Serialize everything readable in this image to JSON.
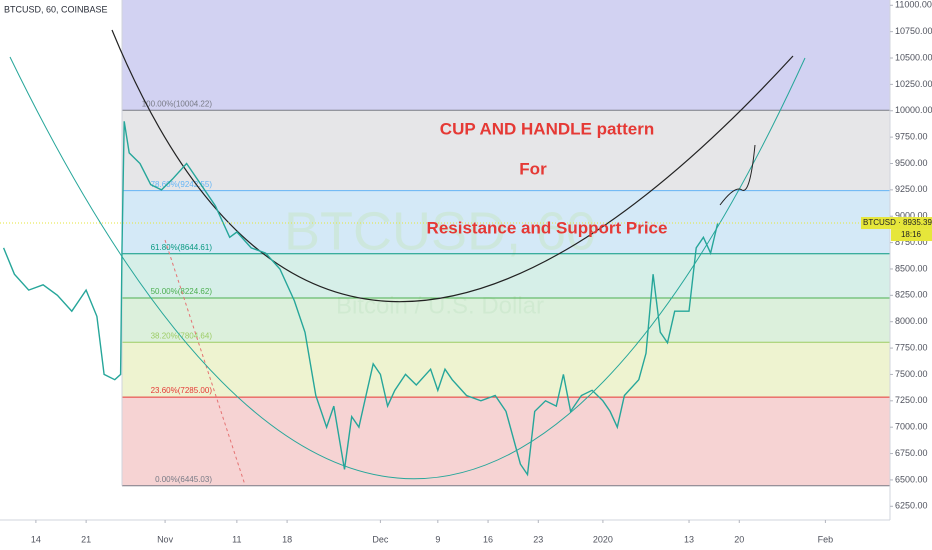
{
  "chart_data": {
    "type": "line",
    "title": "BTCUSD, 60, COINBASE",
    "watermark": "BTCUSD, 60",
    "watermark_subtitle": "Bitcoin / U.S. Dollar",
    "annotations": [
      "CUP AND HANDLE pattern",
      "For",
      "Resistance and Support Price"
    ],
    "color": "#26a69a",
    "x": [
      -4.5,
      -3,
      -1,
      1,
      3,
      5,
      7,
      8.5,
      9.5,
      11,
      11.8,
      12,
      12.3,
      13,
      14.5,
      16,
      17.5,
      19,
      21,
      23,
      25,
      27,
      28,
      30,
      32,
      34,
      36,
      37.5,
      39,
      40.5,
      41.5,
      42.5,
      43,
      44,
      45,
      46,
      47,
      48,
      49,
      50,
      51.5,
      53,
      55,
      56,
      57,
      58,
      60,
      62,
      64,
      65.5,
      66.5,
      67.5,
      68.5,
      69.5,
      71,
      72.5,
      73.5,
      74.5,
      76,
      77.5,
      79,
      80,
      81,
      82,
      84,
      85,
      86,
      87,
      88,
      89,
      91,
      92,
      93,
      94,
      95
    ],
    "values": [
      8700,
      8450,
      8300,
      8350,
      8250,
      8100,
      8300,
      8050,
      7500,
      7450,
      7500,
      8700,
      9900,
      9600,
      9500,
      9300,
      9250,
      9350,
      9500,
      9300,
      9100,
      8800,
      8850,
      8700,
      8650,
      8500,
      8200,
      7900,
      7300,
      7000,
      7200,
      6800,
      6600,
      7100,
      7000,
      7300,
      7600,
      7500,
      7200,
      7350,
      7500,
      7400,
      7550,
      7350,
      7550,
      7450,
      7300,
      7250,
      7300,
      7150,
      6900,
      6650,
      6550,
      7150,
      7250,
      7200,
      7500,
      7150,
      7300,
      7350,
      7250,
      7150,
      7000,
      7300,
      7450,
      7700,
      8450,
      7900,
      7800,
      8100,
      8100,
      8700,
      8800,
      8650,
      8935
    ],
    "xlim": [
      -5,
      119
    ],
    "xticks": [
      {
        "value": 0,
        "label": "14"
      },
      {
        "value": 7,
        "label": "21"
      },
      {
        "value": 18,
        "label": "Nov"
      },
      {
        "value": 28,
        "label": "11"
      },
      {
        "value": 35,
        "label": "18"
      },
      {
        "value": 48,
        "label": "Dec"
      },
      {
        "value": 56,
        "label": "9"
      },
      {
        "value": 63,
        "label": "16"
      },
      {
        "value": 70,
        "label": "23"
      },
      {
        "value": 79,
        "label": "2020"
      },
      {
        "value": 91,
        "label": "13"
      },
      {
        "value": 98,
        "label": "20"
      },
      {
        "value": 110,
        "label": "Feb"
      }
    ],
    "ylim": [
      6120,
      11050
    ],
    "yticks": [
      {
        "value": 6250,
        "label": "6250.00"
      },
      {
        "value": 6500,
        "label": "6500.00"
      },
      {
        "value": 6750,
        "label": "6750.00"
      },
      {
        "value": 7000,
        "label": "7000.00"
      },
      {
        "value": 7250,
        "label": "7250.00"
      },
      {
        "value": 7500,
        "label": "7500.00"
      },
      {
        "value": 7750,
        "label": "7750.00"
      },
      {
        "value": 8000,
        "label": "8000.00"
      },
      {
        "value": 8250,
        "label": "8250.00"
      },
      {
        "value": 8500,
        "label": "8500.00"
      },
      {
        "value": 8750,
        "label": "8750.00"
      },
      {
        "value": 9000,
        "label": "9000.00"
      },
      {
        "value": 9250,
        "label": "9250.00"
      },
      {
        "value": 9500,
        "label": "9500.00"
      },
      {
        "value": 9750,
        "label": "9750.00"
      },
      {
        "value": 10000,
        "label": "10000.00"
      },
      {
        "value": 10250,
        "label": "10250.00"
      },
      {
        "value": 10500,
        "label": "10500.00"
      },
      {
        "value": 10750,
        "label": "10750.00"
      },
      {
        "value": 11000,
        "label": "11000.00"
      }
    ],
    "grid": false,
    "fib_start_x": 12,
    "fib_levels": [
      {
        "label": "0.00%(6445.03)",
        "value": 6445.03,
        "color": "#787b86",
        "fill": "#f6d3d3"
      },
      {
        "label": "23.60%(7285.00)",
        "value": 7285.0,
        "color": "#e53935",
        "fill": "#eef3d0"
      },
      {
        "label": "38.20%(7804.64)",
        "value": 7804.64,
        "color": "#9ccc65",
        "fill": "#dcf0dc"
      },
      {
        "label": "50.00%(8224.62)",
        "value": 8224.62,
        "color": "#4caf50",
        "fill": "#d6efe8"
      },
      {
        "label": "61.80%(8644.61)",
        "value": 8644.61,
        "color": "#089981",
        "fill": "#d4e9f7"
      },
      {
        "label": "78.60%(9242.55)",
        "value": 9242.55,
        "color": "#64b5f6",
        "fill": "#e6e6e8"
      },
      {
        "label": "100.00%(10004.22)",
        "value": 10004.22,
        "color": "#787b86",
        "fill": "#d2d2f2"
      }
    ],
    "last_price": {
      "label": "BTCUSD · 8935.39",
      "value": 8935.39,
      "color": "#e6e63a"
    },
    "countdown": "18:16"
  }
}
